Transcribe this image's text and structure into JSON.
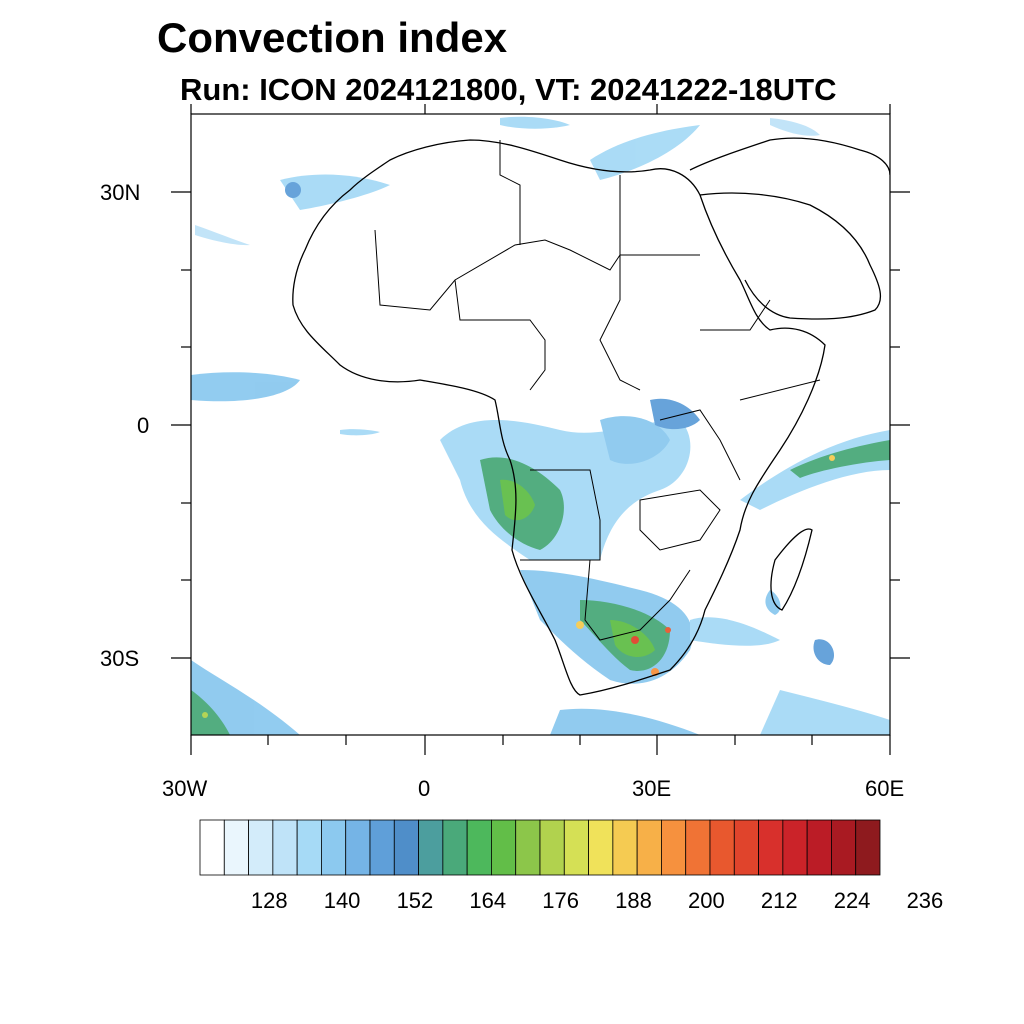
{
  "title": "Convection index",
  "subtitle": "Run: ICON 2024121800,  VT: 20241222-18UTC",
  "map": {
    "lon_range": [
      -30,
      60
    ],
    "lat_range": [
      -40,
      40
    ],
    "x_tick_labels": [
      "30W",
      "0",
      "30E",
      "60E"
    ],
    "y_tick_labels": [
      "30N",
      "0",
      "30S"
    ]
  },
  "colorbar": {
    "labels": [
      "128",
      "140",
      "152",
      "164",
      "176",
      "188",
      "200",
      "212",
      "224",
      "236"
    ],
    "colors": [
      "#ffffff",
      "#eaf6fd",
      "#d3ecfa",
      "#bfe3f8",
      "#a6daf6",
      "#8cc9ef",
      "#75b4e6",
      "#5f9fd9",
      "#4f8ec9",
      "#4c9e9e",
      "#4aa97a",
      "#4db85c",
      "#62be48",
      "#8cc64a",
      "#b1d24e",
      "#d5e055",
      "#f0e25a",
      "#f5cb52",
      "#f7b048",
      "#f6913e",
      "#f07335",
      "#e8582e",
      "#e0442c",
      "#d8302c",
      "#cb2329",
      "#bb1c26",
      "#a91a22",
      "#8e1a1e"
    ]
  }
}
